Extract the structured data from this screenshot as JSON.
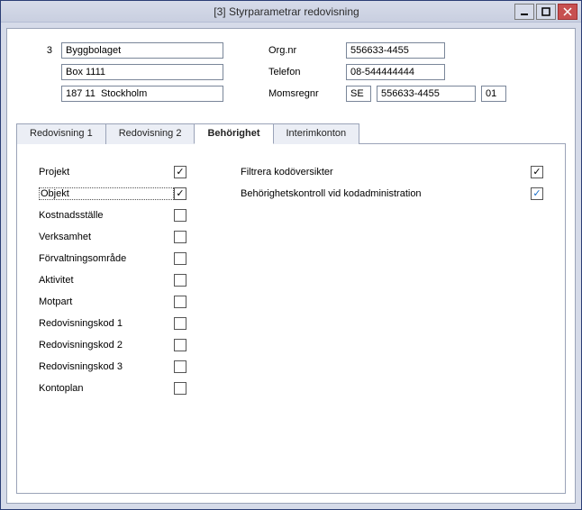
{
  "window": {
    "title": "[3]  Styrparametrar redovisning"
  },
  "company": {
    "number": "3",
    "name": "Byggbolaget",
    "address": "Box 1111",
    "city": "187 11  Stockholm"
  },
  "org": {
    "orgnr_label": "Org.nr",
    "orgnr": "556633-4455",
    "phone_label": "Telefon",
    "phone": "08-544444444",
    "moms_label": "Momsregnr",
    "moms_cc": "SE",
    "moms_no": "556633-4455",
    "moms_suffix": "01"
  },
  "tabs": {
    "t1": "Redovisning 1",
    "t2": "Redovisning 2",
    "t3": "Behörighet",
    "t4": "Interimkonton"
  },
  "left_checks": [
    {
      "label": "Projekt",
      "checked": true
    },
    {
      "label": "Objekt",
      "checked": true,
      "focused": true
    },
    {
      "label": "Kostnadsställe",
      "checked": false
    },
    {
      "label": "Verksamhet",
      "checked": false
    },
    {
      "label": "Förvaltningsområde",
      "checked": false
    },
    {
      "label": "Aktivitet",
      "checked": false
    },
    {
      "label": "Motpart",
      "checked": false
    },
    {
      "label": "Redovisningskod 1",
      "checked": false
    },
    {
      "label": "Redovisningskod 2",
      "checked": false
    },
    {
      "label": "Redovisningskod 3",
      "checked": false
    },
    {
      "label": "Kontoplan",
      "checked": false
    }
  ],
  "right_checks": [
    {
      "label": "Filtrera kodöversikter",
      "checked": true,
      "blue": false
    },
    {
      "label": "Behörighetskontroll vid kodadministration",
      "checked": true,
      "blue": true
    }
  ]
}
